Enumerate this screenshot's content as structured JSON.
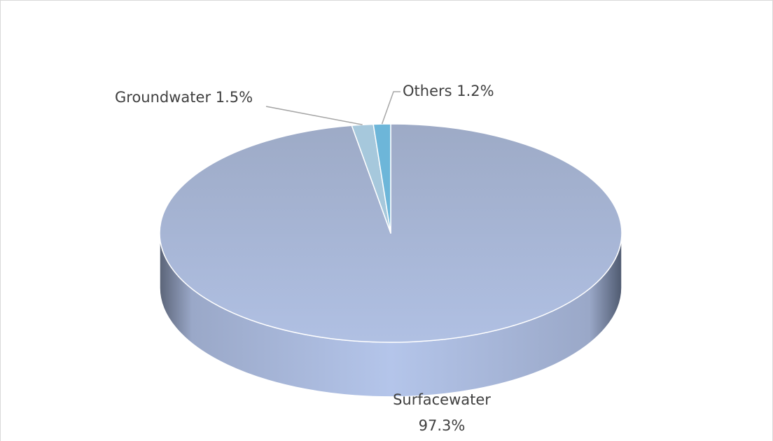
{
  "chart_data": {
    "type": "pie",
    "style": "3d",
    "categories": [
      "Surfacewater",
      "Groundwater",
      "Others"
    ],
    "values": [
      97.3,
      1.5,
      1.2
    ],
    "unit": "%",
    "colors": [
      "#a9b9dc",
      "#a6c8dc",
      "#6db6d9"
    ],
    "side_color": "#8d9fcb",
    "labels": [
      {
        "name": "Surfacewater",
        "value": "97.3%"
      },
      {
        "name": "Groundwater",
        "value": "1.5%"
      },
      {
        "name": "Others",
        "value": "1.2%"
      }
    ],
    "legend": "none"
  }
}
